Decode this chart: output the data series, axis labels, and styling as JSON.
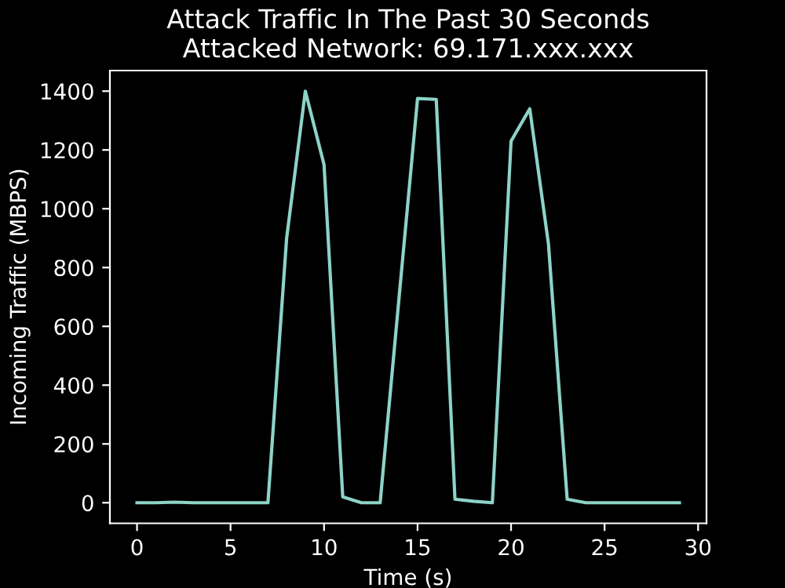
{
  "chart_data": {
    "type": "line",
    "title": "Attack Traffic In The Past 30 Seconds\nAttacked Network: 69.171.xxx.xxx",
    "xlabel": "Time (s)",
    "ylabel": "Incoming Traffic (MBPS)",
    "x": [
      0,
      1,
      2,
      3,
      4,
      5,
      6,
      7,
      8,
      9,
      10,
      11,
      12,
      13,
      14,
      15,
      16,
      17,
      18,
      19,
      20,
      21,
      22,
      23,
      24,
      25,
      26,
      27,
      28,
      29
    ],
    "series": [
      {
        "color": "#8dd3c7",
        "values": [
          0,
          0,
          2,
          0,
          0,
          0,
          0,
          0,
          900,
          1400,
          1150,
          20,
          0,
          0,
          690,
          1375,
          1372,
          12,
          5,
          0,
          1230,
          1340,
          880,
          12,
          0,
          0,
          0,
          0,
          0,
          0
        ]
      }
    ],
    "xlim": [
      -1.45,
      30.45
    ],
    "ylim": [
      -70,
      1470
    ],
    "xticks": [
      0,
      5,
      10,
      15,
      20,
      25,
      30
    ],
    "yticks": [
      0,
      200,
      400,
      600,
      800,
      1000,
      1200,
      1400
    ],
    "grid": false,
    "legend": false
  }
}
